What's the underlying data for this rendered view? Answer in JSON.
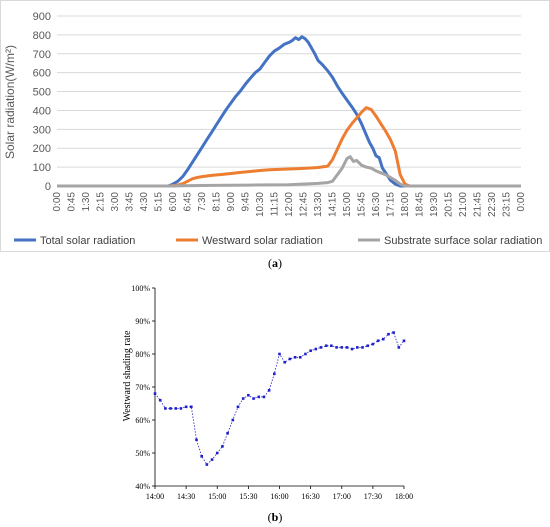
{
  "captions": {
    "a": "a",
    "b": "b"
  },
  "chart_data": [
    {
      "type": "line",
      "title": "",
      "xlabel": "",
      "ylabel": "Solar radiation(W/m²)",
      "ylim": [
        0,
        900
      ],
      "yticks": [
        "0",
        "100",
        "200",
        "300",
        "400",
        "500",
        "600",
        "700",
        "800",
        "900"
      ],
      "xticks": [
        "0:00",
        "0:45",
        "1:30",
        "2:15",
        "3:00",
        "3:45",
        "4:30",
        "5:15",
        "6:00",
        "6:45",
        "7:30",
        "8:15",
        "9:00",
        "9:45",
        "10:30",
        "11:15",
        "12:00",
        "12:45",
        "13:30",
        "14:15",
        "15:00",
        "15:45",
        "16:30",
        "17:15",
        "18:00",
        "18:45",
        "19:30",
        "20:15",
        "21:00",
        "21:45",
        "22:30",
        "23:15",
        "0:00"
      ],
      "grid": "horizontal",
      "legend": "bottom",
      "series": [
        {
          "name": "Total solar radiation",
          "color": "#4472C4",
          "x": [
            "0:00",
            "5:45",
            "6:00",
            "6:15",
            "6:30",
            "6:45",
            "7:00",
            "7:15",
            "7:30",
            "7:45",
            "8:00",
            "8:15",
            "8:30",
            "8:45",
            "9:00",
            "9:15",
            "9:30",
            "9:45",
            "10:00",
            "10:15",
            "10:30",
            "10:45",
            "11:00",
            "11:15",
            "11:30",
            "11:45",
            "12:00",
            "12:10",
            "12:20",
            "12:30",
            "12:40",
            "12:50",
            "13:00",
            "13:10",
            "13:20",
            "13:30",
            "13:45",
            "14:00",
            "14:15",
            "14:30",
            "14:45",
            "15:00",
            "15:15",
            "15:30",
            "15:45",
            "16:00",
            "16:10",
            "16:20",
            "16:30",
            "16:40",
            "16:50",
            "17:00",
            "17:15",
            "17:30",
            "17:45",
            "18:00",
            "18:15",
            "23:59"
          ],
          "y": [
            0,
            0,
            10,
            25,
            50,
            85,
            125,
            165,
            205,
            245,
            285,
            325,
            365,
            405,
            440,
            475,
            505,
            540,
            570,
            600,
            620,
            655,
            690,
            715,
            730,
            750,
            760,
            770,
            785,
            775,
            790,
            780,
            760,
            730,
            700,
            665,
            640,
            610,
            575,
            530,
            490,
            455,
            420,
            380,
            330,
            270,
            230,
            200,
            160,
            150,
            95,
            70,
            30,
            10,
            0,
            0,
            0,
            0
          ]
        },
        {
          "name": "Westward solar radiation",
          "color": "#ED7D31",
          "x": [
            "0:00",
            "5:45",
            "6:00",
            "6:15",
            "6:30",
            "6:45",
            "7:00",
            "7:15",
            "7:30",
            "7:45",
            "8:00",
            "8:30",
            "9:00",
            "9:30",
            "10:00",
            "10:30",
            "11:00",
            "11:30",
            "12:00",
            "12:30",
            "13:00",
            "13:30",
            "14:00",
            "14:15",
            "14:30",
            "14:45",
            "15:00",
            "15:15",
            "15:30",
            "15:45",
            "16:00",
            "16:15",
            "16:30",
            "16:45",
            "17:00",
            "17:15",
            "17:30",
            "17:45",
            "18:00",
            "18:15",
            "23:59"
          ],
          "y": [
            0,
            0,
            2,
            5,
            12,
            25,
            38,
            45,
            50,
            53,
            56,
            61,
            66,
            72,
            77,
            82,
            86,
            88,
            90,
            92,
            95,
            98,
            105,
            140,
            195,
            250,
            295,
            330,
            360,
            390,
            415,
            405,
            370,
            330,
            290,
            245,
            185,
            60,
            10,
            0,
            0
          ]
        },
        {
          "name": "Substrate surface solar radiation",
          "color": "#A5A5A5",
          "x": [
            "0:00",
            "6:00",
            "6:30",
            "7:00",
            "8:00",
            "9:00",
            "10:00",
            "11:00",
            "12:00",
            "12:30",
            "13:00",
            "13:30",
            "14:00",
            "14:15",
            "14:30",
            "14:45",
            "15:00",
            "15:10",
            "15:20",
            "15:30",
            "15:45",
            "16:00",
            "16:15",
            "16:30",
            "16:45",
            "17:00",
            "17:15",
            "17:30",
            "17:45",
            "18:00",
            "23:59"
          ],
          "y": [
            0,
            0,
            1,
            2,
            3,
            4,
            5,
            6,
            7,
            9,
            11,
            14,
            18,
            25,
            60,
            95,
            145,
            155,
            130,
            135,
            110,
            100,
            95,
            80,
            70,
            60,
            45,
            30,
            10,
            0,
            0
          ]
        }
      ]
    },
    {
      "type": "line",
      "title": "",
      "xlabel": "",
      "ylabel": "Westward shading rate",
      "ylim": [
        40,
        100
      ],
      "yticks": [
        "40%",
        "50%",
        "60%",
        "70%",
        "80%",
        "90%",
        "100%"
      ],
      "xticks": [
        "14:00",
        "14:30",
        "15:00",
        "15:30",
        "16:00",
        "16:30",
        "17:00",
        "17:30",
        "18:00"
      ],
      "grid": "none",
      "legend": "none",
      "series": [
        {
          "color": "#1F1FCC",
          "x": [
            "14:00",
            "14:05",
            "14:10",
            "14:15",
            "14:20",
            "14:25",
            "14:30",
            "14:35",
            "14:40",
            "14:45",
            "14:50",
            "14:55",
            "15:00",
            "15:05",
            "15:10",
            "15:15",
            "15:20",
            "15:25",
            "15:30",
            "15:35",
            "15:40",
            "15:45",
            "15:50",
            "15:55",
            "16:00",
            "16:05",
            "16:10",
            "16:15",
            "16:20",
            "16:25",
            "16:30",
            "16:35",
            "16:40",
            "16:45",
            "16:50",
            "16:55",
            "17:00",
            "17:05",
            "17:10",
            "17:15",
            "17:20",
            "17:25",
            "17:30",
            "17:35",
            "17:40",
            "17:45",
            "17:50",
            "17:55",
            "18:00"
          ],
          "y": [
            68,
            66,
            63.5,
            63.5,
            63.5,
            63.5,
            64,
            64,
            54,
            49,
            46.5,
            48,
            50,
            52,
            56,
            60,
            64,
            66.5,
            67.5,
            66.5,
            67,
            67,
            69,
            74,
            80,
            77.5,
            78.5,
            79,
            79,
            80,
            81,
            81.5,
            82,
            82.5,
            82.5,
            82,
            82,
            82,
            81.5,
            82,
            82,
            82.5,
            83,
            84,
            84.5,
            86,
            86.5,
            82,
            84
          ]
        }
      ]
    }
  ]
}
